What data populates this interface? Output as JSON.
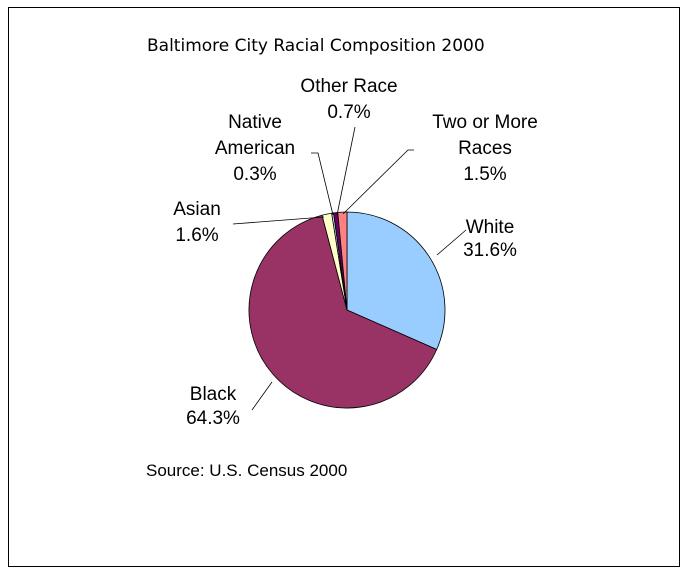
{
  "chart_data": {
    "type": "pie",
    "title": "Baltimore City Racial Composition 2000",
    "source": "Source: U.S. Census 2000",
    "slices": [
      {
        "name": "White",
        "value": 31.6,
        "label": "31.6%",
        "color": "#99ccff",
        "label_lines": [
          "White",
          "31.6%"
        ]
      },
      {
        "name": "Black",
        "value": 64.3,
        "label": "64.3%",
        "color": "#993366",
        "label_lines": [
          "Black",
          "64.3%"
        ]
      },
      {
        "name": "Asian",
        "value": 1.6,
        "label": "1.6%",
        "color": "#ffffcc",
        "label_lines": [
          "Asian",
          "1.6%"
        ]
      },
      {
        "name": "Native American",
        "value": 0.3,
        "label": "0.3%",
        "color": "#ccffff",
        "label_lines": [
          "Native",
          "American",
          "0.3%"
        ]
      },
      {
        "name": "Other Race",
        "value": 0.7,
        "label": "0.7%",
        "color": "#660066",
        "label_lines": [
          "Other Race",
          "0.7%"
        ]
      },
      {
        "name": "Two or More Races",
        "value": 1.5,
        "label": "1.5%",
        "color": "#ff8080",
        "label_lines": [
          "Two or More",
          "Races",
          "1.5%"
        ]
      }
    ]
  }
}
